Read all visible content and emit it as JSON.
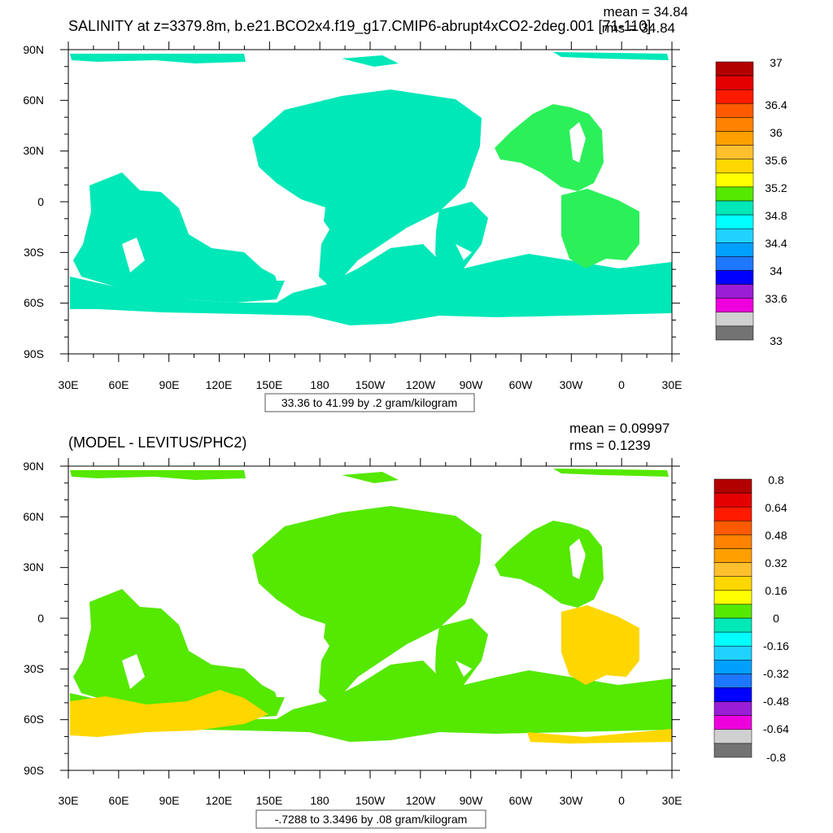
{
  "chart_data": [
    {
      "type": "heatmap",
      "title": "SALINITY at z=3379.8m, b.e21.BCO2x4.f19_g17.CMIP6-abrupt4xCO2-2deg.001 [71-110]",
      "stat_mean": "mean = 34.84",
      "stat_rms": "rms = 34.84",
      "xlim": [
        30,
        390
      ],
      "ylim": [
        -90,
        90
      ],
      "x_ticks": [
        "30E",
        "60E",
        "90E",
        "120E",
        "150E",
        "180",
        "150W",
        "120W",
        "90W",
        "60W",
        "30W",
        "0",
        "30E"
      ],
      "y_ticks": [
        "90N",
        "60N",
        "30N",
        "0",
        "30S",
        "60S",
        "90S"
      ],
      "colorbar_labels": [
        "37",
        "36.4",
        "36",
        "35.6",
        "35.2",
        "34.8",
        "34.4",
        "34",
        "33.6",
        "33"
      ],
      "colorbar_range": [
        33,
        37
      ],
      "contour_info": "33.36 to 41.99 by .2 gram/kilogram",
      "regions": [
        {
          "name": "arctic-basin",
          "value": 34.8
        },
        {
          "name": "pacific-basin",
          "value": 34.8
        },
        {
          "name": "indian-basin",
          "value": 34.8
        },
        {
          "name": "south-atlantic",
          "value": 34.8
        },
        {
          "name": "southern-ocean",
          "value": 34.8
        },
        {
          "name": "north-atlantic",
          "value": 35.0
        },
        {
          "name": "tropical-atlantic",
          "value": 35.0
        }
      ]
    },
    {
      "type": "heatmap",
      "title": "(MODEL - LEVITUS/PHC2)",
      "stat_mean": "mean = 0.09997",
      "stat_rms": "rms = 0.1239",
      "xlim": [
        30,
        390
      ],
      "ylim": [
        -90,
        90
      ],
      "x_ticks": [
        "30E",
        "60E",
        "90E",
        "120E",
        "150E",
        "180",
        "150W",
        "120W",
        "90W",
        "60W",
        "30W",
        "0",
        "30E"
      ],
      "y_ticks": [
        "90N",
        "60N",
        "30N",
        "0",
        "30S",
        "60S",
        "90S"
      ],
      "colorbar_labels": [
        "0.8",
        "0.64",
        "0.48",
        "0.32",
        "0.16",
        "0",
        "-0.16",
        "-0.32",
        "-0.48",
        "-0.64",
        "-0.8"
      ],
      "colorbar_range": [
        -0.8,
        0.8
      ],
      "contour_info": "-.7288 to 3.3496 by .08 gram/kilogram",
      "regions": [
        {
          "name": "arctic-basin",
          "value": 0.05
        },
        {
          "name": "pacific-basin",
          "value": 0.05
        },
        {
          "name": "indian-basin",
          "value": 0.05
        },
        {
          "name": "south-atlantic",
          "value": 0.05
        },
        {
          "name": "southern-ocean",
          "value": 0.05
        },
        {
          "name": "southern-ocean-band",
          "value": 0.2
        },
        {
          "name": "north-atlantic",
          "value": 0.05
        },
        {
          "name": "tropical-atlantic",
          "value": 0.2
        }
      ]
    }
  ],
  "colors": {
    "palette": [
      "#737373",
      "#d0d0d0",
      "#ee00dd",
      "#9a1ed6",
      "#0000ff",
      "#1e78ff",
      "#00a0ff",
      "#20d2ff",
      "#00ffff",
      "#00e8b8",
      "#2cf05a",
      "#55e800",
      "#ffff00",
      "#ffd700",
      "#ffc030",
      "#ffa000",
      "#ff8200",
      "#ff5a00",
      "#ff1a00",
      "#e50000",
      "#b20000"
    ],
    "land": "#ffffff",
    "frame": "#000000"
  }
}
